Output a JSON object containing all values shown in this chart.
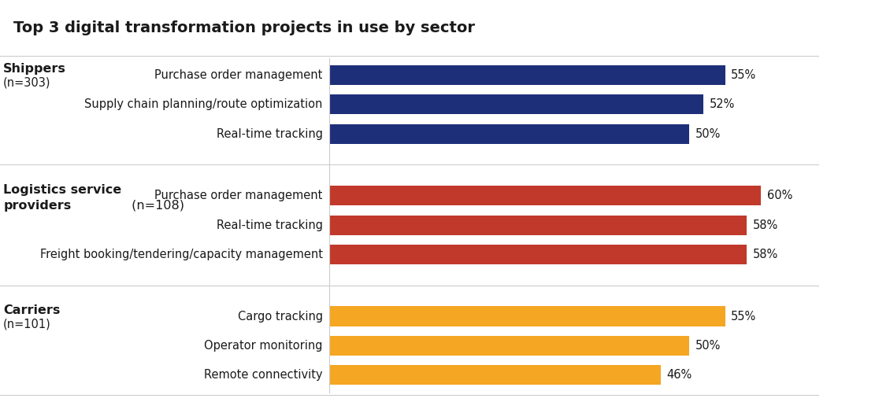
{
  "title": "Top 3 digital transformation projects in use by sector",
  "title_fontsize": 14,
  "background_color": "#ffffff",
  "sectors": [
    {
      "label": "Shippers",
      "sublabel": "(n=303)",
      "color": "#1e2f7a",
      "bars": [
        {
          "label": "Purchase order management",
          "value": 55
        },
        {
          "label": "Supply chain planning/route optimization",
          "value": 52
        },
        {
          "label": "Real-time tracking",
          "value": 50
        }
      ]
    },
    {
      "label": "Logistics service\nproviders",
      "sublabel": "(n=108)",
      "color": "#c0392b",
      "bars": [
        {
          "label": "Purchase order management",
          "value": 60
        },
        {
          "label": "Real-time tracking",
          "value": 58
        },
        {
          "label": "Freight booking/tendering/capacity management",
          "value": 58
        }
      ]
    },
    {
      "label": "Carriers",
      "sublabel": "(n=101)",
      "color": "#f5a623",
      "bars": [
        {
          "label": "Cargo tracking",
          "value": 55
        },
        {
          "label": "Operator monitoring",
          "value": 50
        },
        {
          "label": "Remote connectivity",
          "value": 46
        }
      ]
    }
  ],
  "bar_height": 0.52,
  "bar_padding": 0.25,
  "sector_padding": 0.85,
  "xlim_max": 68,
  "label_fontsize": 10.5,
  "sector_label_fontsize": 11.5,
  "value_fontsize": 10.5,
  "divider_color": "#cccccc",
  "text_color": "#1a1a1a"
}
